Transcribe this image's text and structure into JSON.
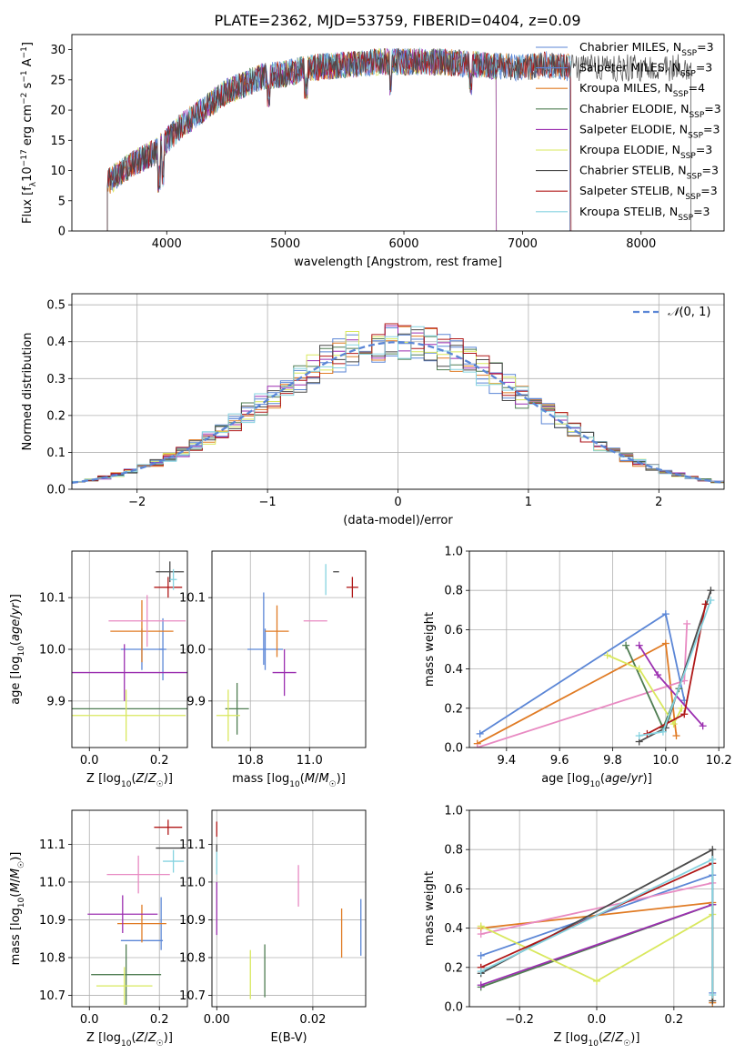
{
  "figure": {
    "title": "PLATE=2362, MJD=53759, FIBERID=0404, z=0.09"
  },
  "series_colors": {
    "Chabrier MILES": "#5b86d6",
    "Salpeter MILES": "#5b86d6",
    "Kroupa MILES": "#e07b24",
    "Chabrier ELODIE": "#4f7d52",
    "Salpeter ELODIE": "#9b2fb0",
    "Kroupa ELODIE": "#d9e85e",
    "Chabrier STELIB": "#4a4a4a",
    "Salpeter STELIB": "#b01818",
    "Kroupa STELIB": "#86d3e0"
  },
  "chart_data": [
    {
      "id": "spectrum",
      "type": "line",
      "xlabel": "wavelength [Angstrom, rest frame]",
      "ylabel": "Flux [f_λ 10^−17 erg cm^−2 s^−1 A^−1]",
      "xlim": [
        3200,
        8700
      ],
      "ylim": [
        0,
        32.5
      ],
      "xticks": [
        4000,
        5000,
        6000,
        7000,
        8000
      ],
      "yticks": [
        0,
        5,
        10,
        15,
        20,
        25,
        30
      ],
      "legend": "top-right",
      "continuum_x": [
        3500,
        3700,
        3900,
        4000,
        4100,
        4300,
        4500,
        4800,
        5000,
        5200,
        5500,
        5800,
        6000,
        6300,
        6600,
        7000,
        7200,
        7400
      ],
      "continuum_y": [
        8,
        11,
        13,
        15,
        17,
        20,
        23,
        25.5,
        26,
        27,
        27.5,
        28,
        28,
        28,
        27.5,
        27,
        27.5,
        27
      ],
      "series": [
        {
          "name": "Chabrier MILES",
          "label": "Chabrier MILES, N",
          "sub": "SSP",
          "n": "=3",
          "xmax": 7400
        },
        {
          "name": "Salpeter MILES",
          "label": "Salpeter MILES, N",
          "sub": "SSP",
          "n": "=3",
          "xmax": 7400
        },
        {
          "name": "Kroupa MILES",
          "label": "Kroupa MILES, N",
          "sub": "SSP",
          "n": "=4",
          "xmax": 7400
        },
        {
          "name": "Chabrier ELODIE",
          "label": "Chabrier ELODIE, N",
          "sub": "SSP",
          "n": "=3",
          "xmax": 6780
        },
        {
          "name": "Salpeter ELODIE",
          "label": "Salpeter ELODIE, N",
          "sub": "SSP",
          "n": "=3",
          "xmax": 6780
        },
        {
          "name": "Kroupa ELODIE",
          "label": "Kroupa ELODIE, N",
          "sub": "SSP",
          "n": "=3",
          "xmax": 6780
        },
        {
          "name": "Chabrier STELIB",
          "label": "Chabrier STELIB, N",
          "sub": "SSP",
          "n": "=3",
          "xmax": 8420
        },
        {
          "name": "Salpeter STELIB",
          "label": "Salpeter STELIB, N",
          "sub": "SSP",
          "n": "=3",
          "xmax": 7410
        },
        {
          "name": "Kroupa STELIB",
          "label": "Kroupa STELIB, N",
          "sub": "SSP",
          "n": "=3",
          "xmax": 7410
        }
      ]
    },
    {
      "id": "residuals",
      "type": "line",
      "xlabel": "(data-model)/error",
      "ylabel": "Normed distribution",
      "xlim": [
        -2.5,
        2.5
      ],
      "ylim": [
        0,
        0.53
      ],
      "xticks": [
        -2,
        -1,
        0,
        1,
        2
      ],
      "yticks": [
        0.0,
        0.1,
        0.2,
        0.3,
        0.4,
        0.5
      ],
      "grid": true,
      "legend": "top-right",
      "reference": {
        "label": "N(0,1)",
        "mu": 0,
        "sigma": 1,
        "color": "#5b86d6"
      },
      "bin_width": 0.1,
      "series_names": [
        "Chabrier MILES",
        "Salpeter MILES",
        "Kroupa MILES",
        "Chabrier ELODIE",
        "Salpeter ELODIE",
        "Kroupa ELODIE",
        "Chabrier STELIB",
        "Salpeter STELIB",
        "Kroupa STELIB"
      ]
    },
    {
      "id": "age_vs_Z",
      "type": "scatter",
      "xlabel": "Z [log10(Z/Z☉)]",
      "ylabel": "age  [log10(age/yr)]",
      "xlim": [
        -0.05,
        0.28
      ],
      "ylim": [
        9.81,
        10.19
      ],
      "xticks": [
        0.0,
        0.2
      ],
      "yticks": [
        9.9,
        10.0,
        10.1
      ],
      "grid": true,
      "points": [
        {
          "series": "Chabrier MILES",
          "x": 0.15,
          "y": 10.0,
          "xerr": 0.06,
          "yerr": 0.04
        },
        {
          "series": "Salpeter MILES",
          "x": 0.21,
          "y": 10.0,
          "xerr": 0.01,
          "yerr": 0.06
        },
        {
          "series": "Kroupa MILES",
          "x": 0.15,
          "y": 10.035,
          "xerr": 0.09,
          "yerr": 0.06
        },
        {
          "series": "Chabrier ELODIE",
          "x": 0.1,
          "y": 9.885,
          "xerr": 0.19,
          "yerr": 0.0
        },
        {
          "series": "Salpeter ELODIE",
          "x": 0.1,
          "y": 9.955,
          "xerr": 0.21,
          "yerr": 0.055
        },
        {
          "series": "Kroupa ELODIE",
          "x": 0.105,
          "y": 9.872,
          "xerr": 0.17,
          "yerr": 0.05
        },
        {
          "series": "Chabrier STELIB",
          "x": 0.23,
          "y": 10.15,
          "xerr": 0.04,
          "yerr": 0.02
        },
        {
          "series": "Salpeter STELIB",
          "x": 0.225,
          "y": 10.12,
          "xerr": 0.04,
          "yerr": 0.02
        },
        {
          "series": "Kroupa STELIB",
          "x": 0.24,
          "y": 10.135,
          "xerr": 0.01,
          "yerr": 0.02
        },
        {
          "series": "pink",
          "x": 0.165,
          "y": 10.055,
          "xerr": 0.11,
          "yerr": 0.05
        }
      ]
    },
    {
      "id": "age_vs_mass",
      "type": "scatter",
      "xlabel": "mass [log10(M/M☉)]",
      "ylabel": "",
      "xlim": [
        10.67,
        11.19
      ],
      "ylim": [
        9.81,
        10.19
      ],
      "xticks": [
        10.8,
        11.0
      ],
      "yticks": [
        9.9,
        10.0,
        10.1
      ],
      "grid": true,
      "points": [
        {
          "series": "Chabrier MILES",
          "x": 10.85,
          "y": 10.0,
          "xerr": 0.06,
          "yerr": 0.04
        },
        {
          "series": "Salpeter MILES",
          "x": 10.845,
          "y": 10.04,
          "xerr": 0.0,
          "yerr": 0.07
        },
        {
          "series": "Kroupa MILES",
          "x": 10.89,
          "y": 10.035,
          "xerr": 0.04,
          "yerr": 0.05
        },
        {
          "series": "Chabrier ELODIE",
          "x": 10.755,
          "y": 9.885,
          "xerr": 0.04,
          "yerr": 0.05
        },
        {
          "series": "Salpeter ELODIE",
          "x": 10.915,
          "y": 9.955,
          "xerr": 0.04,
          "yerr": 0.045
        },
        {
          "series": "Kroupa ELODIE",
          "x": 10.725,
          "y": 9.872,
          "xerr": 0.04,
          "yerr": 0.05
        },
        {
          "series": "Chabrier STELIB",
          "x": 11.09,
          "y": 10.15,
          "xerr": 0.01,
          "yerr": 0.0
        },
        {
          "series": "Salpeter STELIB",
          "x": 11.145,
          "y": 10.12,
          "xerr": 0.02,
          "yerr": 0.02
        },
        {
          "series": "Kroupa STELIB",
          "x": 11.055,
          "y": 10.135,
          "xerr": 0.0,
          "yerr": 0.03
        },
        {
          "series": "pink",
          "x": 11.02,
          "y": 10.055,
          "xerr": 0.04,
          "yerr": 0.0
        }
      ]
    },
    {
      "id": "weight_vs_age",
      "type": "line",
      "xlabel": "age  [log10(age/yr)]",
      "ylabel": "mass weight",
      "xlim": [
        9.26,
        10.22
      ],
      "ylim": [
        0,
        1
      ],
      "xticks": [
        9.4,
        9.6,
        9.8,
        10.0,
        10.2
      ],
      "yticks": [
        0.0,
        0.2,
        0.4,
        0.6,
        0.8,
        1.0
      ],
      "grid": true,
      "series": [
        {
          "name": "Chabrier MILES",
          "x": [
            9.3,
            10.0,
            10.07
          ],
          "y": [
            0.07,
            0.68,
            0.24
          ]
        },
        {
          "name": "Kroupa MILES",
          "x": [
            9.29,
            10.0,
            10.04
          ],
          "y": [
            0.02,
            0.53,
            0.06
          ]
        },
        {
          "name": "pink",
          "x": [
            9.29,
            10.07,
            10.08
          ],
          "y": [
            0.0,
            0.34,
            0.63
          ]
        },
        {
          "name": "Chabrier ELODIE",
          "x": [
            9.85,
            9.99,
            10.05
          ],
          "y": [
            0.52,
            0.1,
            0.3
          ]
        },
        {
          "name": "Salpeter ELODIE",
          "x": [
            9.9,
            9.97,
            10.14
          ],
          "y": [
            0.52,
            0.37,
            0.11
          ]
        },
        {
          "name": "Kroupa ELODIE",
          "x": [
            9.78,
            9.9,
            10.03,
            10.06
          ],
          "y": [
            0.47,
            0.4,
            0.12,
            0.2
          ]
        },
        {
          "name": "Chabrier STELIB",
          "x": [
            9.9,
            10.0,
            10.17
          ],
          "y": [
            0.03,
            0.1,
            0.8
          ]
        },
        {
          "name": "Salpeter STELIB",
          "x": [
            9.93,
            10.07,
            10.15
          ],
          "y": [
            0.07,
            0.17,
            0.73
          ]
        },
        {
          "name": "Kroupa STELIB",
          "x": [
            9.9,
            9.99,
            10.17
          ],
          "y": [
            0.06,
            0.08,
            0.75
          ]
        }
      ]
    },
    {
      "id": "mass_vs_Z",
      "type": "scatter",
      "xlabel": "Z [log10(Z/Z☉)]",
      "ylabel": "mass [log10(M/M☉)]",
      "xlim": [
        -0.05,
        0.28
      ],
      "ylim": [
        10.67,
        11.19
      ],
      "xticks": [
        0.0,
        0.2
      ],
      "yticks": [
        10.7,
        10.8,
        10.9,
        11.0,
        11.1
      ],
      "grid": true,
      "points": [
        {
          "series": "Chabrier MILES",
          "x": 0.15,
          "y": 10.845,
          "xerr": 0.06,
          "yerr": 0.0
        },
        {
          "series": "Salpeter MILES",
          "x": 0.205,
          "y": 10.89,
          "xerr": 0.0,
          "yerr": 0.07
        },
        {
          "series": "Kroupa MILES",
          "x": 0.15,
          "y": 10.89,
          "xerr": 0.07,
          "yerr": 0.05
        },
        {
          "series": "Chabrier ELODIE",
          "x": 0.105,
          "y": 10.755,
          "xerr": 0.1,
          "yerr": 0.08
        },
        {
          "series": "Salpeter ELODIE",
          "x": 0.095,
          "y": 10.915,
          "xerr": 0.1,
          "yerr": 0.05
        },
        {
          "series": "Kroupa ELODIE",
          "x": 0.1,
          "y": 10.725,
          "xerr": 0.08,
          "yerr": 0.05
        },
        {
          "series": "Chabrier STELIB",
          "x": 0.23,
          "y": 11.09,
          "xerr": 0.04,
          "yerr": 0.0
        },
        {
          "series": "Salpeter STELIB",
          "x": 0.225,
          "y": 11.145,
          "xerr": 0.04,
          "yerr": 0.02
        },
        {
          "series": "Kroupa STELIB",
          "x": 0.24,
          "y": 11.055,
          "xerr": 0.03,
          "yerr": 0.03
        },
        {
          "series": "pink",
          "x": 0.14,
          "y": 11.02,
          "xerr": 0.09,
          "yerr": 0.05
        }
      ]
    },
    {
      "id": "mass_vs_ebv",
      "type": "scatter",
      "xlabel": "E(B-V)",
      "ylabel": "",
      "xlim": [
        -0.001,
        0.031
      ],
      "ylim": [
        10.67,
        11.19
      ],
      "xticks": [
        0.0,
        0.02
      ],
      "yticks": [
        10.7,
        10.8,
        10.9,
        11.0,
        11.1
      ],
      "grid": true,
      "points": [
        {
          "series": "Chabrier MILES",
          "x": 0.03,
          "y": 10.88,
          "xerr": 0.0,
          "yerr": 0.075
        },
        {
          "series": "Kroupa MILES",
          "x": 0.026,
          "y": 10.865,
          "xerr": 0.0,
          "yerr": 0.065
        },
        {
          "series": "pink",
          "x": 0.017,
          "y": 10.99,
          "xerr": 0.0,
          "yerr": 0.055
        },
        {
          "series": "Chabrier ELODIE",
          "x": 0.01,
          "y": 10.765,
          "xerr": 0.0,
          "yerr": 0.07
        },
        {
          "series": "Kroupa ELODIE",
          "x": 0.007,
          "y": 10.755,
          "xerr": 0.0,
          "yerr": 0.065
        },
        {
          "series": "Salpeter ELODIE",
          "x": 0.0,
          "y": 10.93,
          "xerr": 0.0,
          "yerr": 0.07
        },
        {
          "series": "Chabrier STELIB",
          "x": 0.0,
          "y": 11.09,
          "xerr": 0.0,
          "yerr": 0.01
        },
        {
          "series": "Salpeter STELIB",
          "x": 0.0,
          "y": 11.14,
          "xerr": 0.0,
          "yerr": 0.02
        },
        {
          "series": "Kroupa STELIB",
          "x": 0.0,
          "y": 11.05,
          "xerr": 0.0,
          "yerr": 0.03
        }
      ]
    },
    {
      "id": "weight_vs_Z",
      "type": "line",
      "xlabel": "Z [log10(Z/Z☉)]",
      "ylabel": "mass weight",
      "xlim": [
        -0.33,
        0.33
      ],
      "ylim": [
        0,
        1
      ],
      "xticks": [
        -0.2,
        0.0,
        0.2
      ],
      "yticks": [
        0.0,
        0.2,
        0.4,
        0.6,
        0.8,
        1.0
      ],
      "grid": true,
      "series": [
        {
          "name": "Chabrier MILES",
          "x": [
            -0.3,
            0.3,
            0.3
          ],
          "y": [
            0.26,
            0.67,
            0.07
          ]
        },
        {
          "name": "Kroupa MILES",
          "x": [
            -0.3,
            0.3,
            0.3
          ],
          "y": [
            0.4,
            0.53,
            0.02
          ]
        },
        {
          "name": "pink",
          "x": [
            -0.3,
            0.3
          ],
          "y": [
            0.37,
            0.63
          ]
        },
        {
          "name": "Chabrier ELODIE",
          "x": [
            -0.3,
            0.3
          ],
          "y": [
            0.1,
            0.52
          ]
        },
        {
          "name": "Salpeter ELODIE",
          "x": [
            -0.3,
            0.3
          ],
          "y": [
            0.11,
            0.52
          ]
        },
        {
          "name": "Kroupa ELODIE",
          "x": [
            -0.3,
            0.0,
            0.3
          ],
          "y": [
            0.41,
            0.13,
            0.47
          ]
        },
        {
          "name": "Chabrier STELIB",
          "x": [
            -0.3,
            0.3,
            0.3
          ],
          "y": [
            0.17,
            0.8,
            0.03
          ]
        },
        {
          "name": "Salpeter STELIB",
          "x": [
            -0.3,
            0.3
          ],
          "y": [
            0.2,
            0.73
          ]
        },
        {
          "name": "Kroupa STELIB",
          "x": [
            -0.3,
            0.3,
            0.3
          ],
          "y": [
            0.18,
            0.75,
            0.06
          ]
        }
      ]
    }
  ]
}
